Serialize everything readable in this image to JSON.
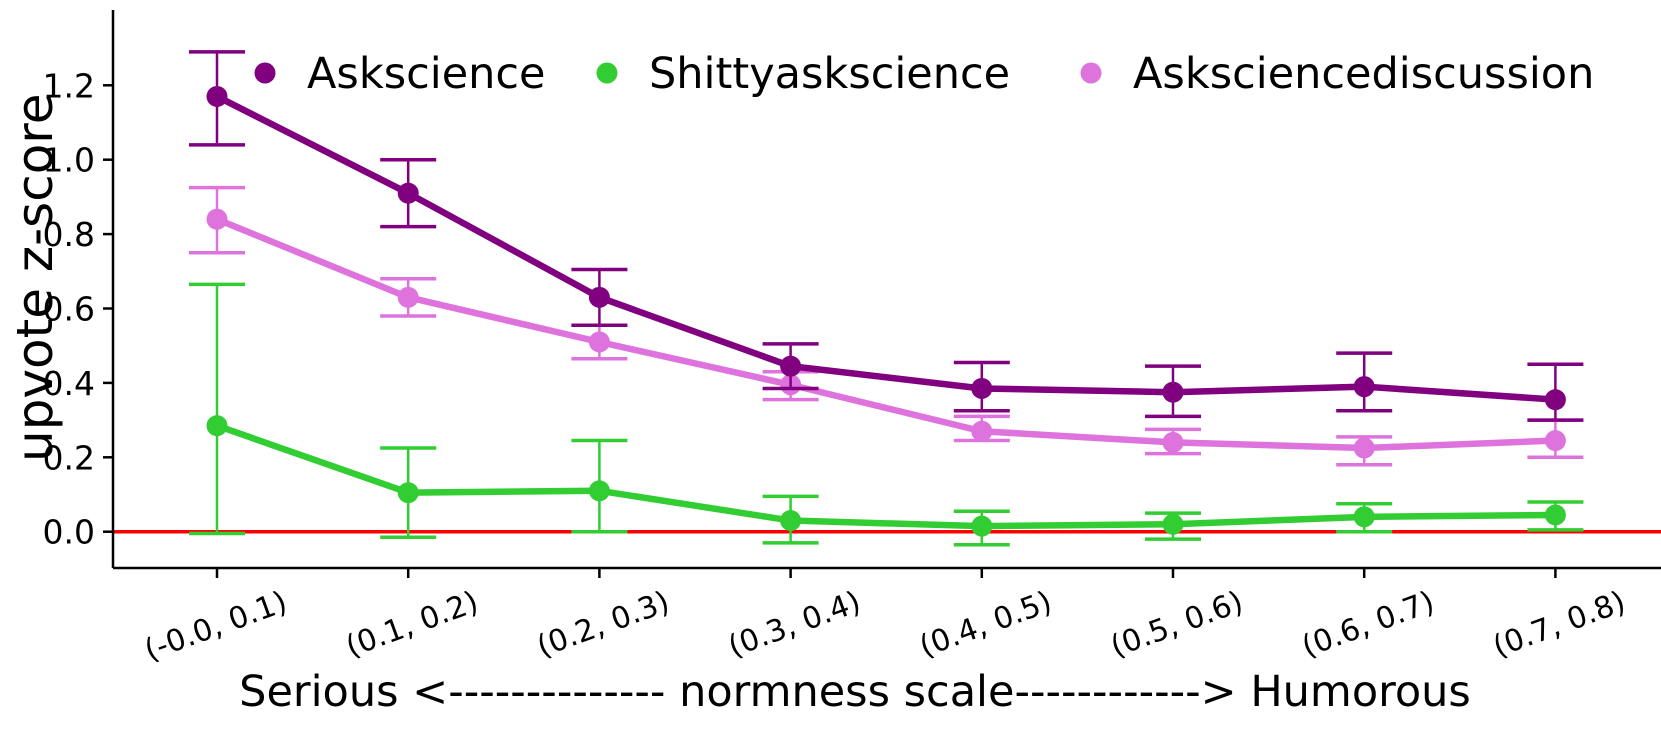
{
  "figure": {
    "background": "#ffffff",
    "axis_color": "#000000"
  },
  "chart_data": {
    "type": "line",
    "title": "",
    "ylabel": "upvote z-score",
    "xlabel": "Serious <-------------- normness scale------------> Humorous",
    "categories": [
      "(-0.0, 0.1)",
      "(0.1, 0.2)",
      "(0.2, 0.3)",
      "(0.3, 0.4)",
      "(0.4, 0.5)",
      "(0.5, 0.6)",
      "(0.6, 0.7)",
      "(0.7, 0.8)"
    ],
    "y_ticks": [
      0.0,
      0.2,
      0.4,
      0.6,
      0.8,
      1.0,
      1.2
    ],
    "y_tick_labels": [
      "0.0",
      "0.2",
      "0.4",
      "0.6",
      "0.8",
      "1.0",
      "1.2"
    ],
    "ylim": [
      -0.12,
      1.37
    ],
    "grid": false,
    "legend_position": "top",
    "zero_line": {
      "y": 0.0,
      "color": "#FF0000"
    },
    "series": [
      {
        "name": "Askscience",
        "color": "#800080",
        "values": [
          1.17,
          0.91,
          0.63,
          0.445,
          0.385,
          0.375,
          0.39,
          0.355
        ],
        "err_lo": [
          1.04,
          0.82,
          0.555,
          0.385,
          0.325,
          0.31,
          0.325,
          0.3
        ],
        "err_hi": [
          1.29,
          1.0,
          0.705,
          0.505,
          0.455,
          0.445,
          0.48,
          0.45
        ]
      },
      {
        "name": "Shittyaskscience",
        "color": "#32CD32",
        "values": [
          0.285,
          0.105,
          0.11,
          0.03,
          0.015,
          0.02,
          0.04,
          0.045
        ],
        "err_lo": [
          -0.005,
          -0.015,
          0.0,
          -0.03,
          -0.035,
          -0.02,
          0.0,
          0.005
        ],
        "err_hi": [
          0.665,
          0.225,
          0.245,
          0.095,
          0.055,
          0.05,
          0.075,
          0.08
        ]
      },
      {
        "name": "Asksciencediscussion",
        "color": "#DE73DE",
        "values": [
          0.84,
          0.63,
          0.51,
          0.395,
          0.27,
          0.24,
          0.225,
          0.245
        ],
        "err_lo": [
          0.75,
          0.58,
          0.465,
          0.355,
          0.245,
          0.21,
          0.18,
          0.2
        ],
        "err_hi": [
          0.925,
          0.68,
          0.555,
          0.43,
          0.31,
          0.275,
          0.255,
          0.3
        ]
      }
    ]
  }
}
